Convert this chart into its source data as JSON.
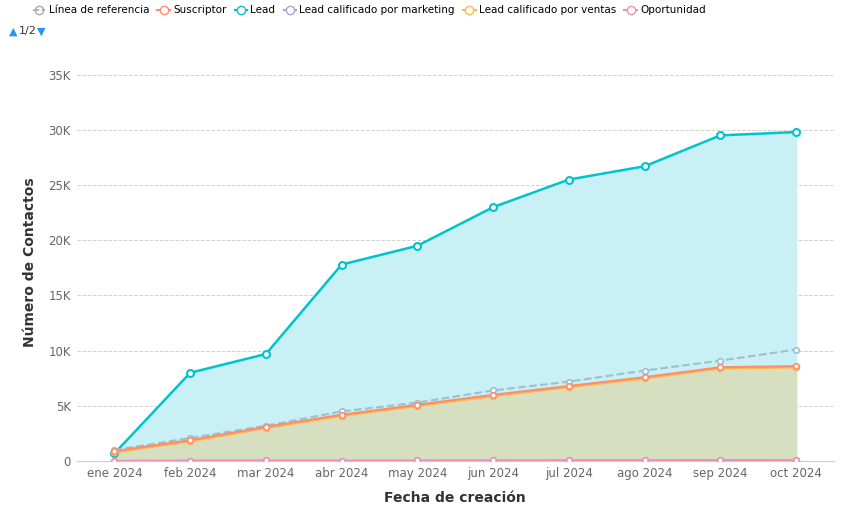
{
  "x_labels": [
    "ene 2024",
    "feb 2024",
    "mar 2024",
    "abr 2024",
    "may 2024",
    "jun 2024",
    "jul 2024",
    "ago 2024",
    "sep 2024",
    "oct 2024"
  ],
  "lead": [
    700,
    8000,
    9700,
    17800,
    19500,
    23000,
    25500,
    26700,
    29500,
    29800
  ],
  "suscriptor": [
    900,
    1900,
    3100,
    4200,
    5100,
    6000,
    6800,
    7600,
    8500,
    8600
  ],
  "lead_calificado_ventas": [
    800,
    1800,
    3000,
    4100,
    5000,
    5900,
    6700,
    7500,
    8400,
    8500
  ],
  "linea_referencia": [
    1000,
    2100,
    3200,
    4500,
    5300,
    6400,
    7200,
    8200,
    9100,
    10100
  ],
  "lead_calificado_marketing": [
    30,
    50,
    60,
    50,
    60,
    70,
    80,
    80,
    90,
    80
  ],
  "oportunidad": [
    30,
    50,
    60,
    50,
    60,
    70,
    80,
    80,
    90,
    80
  ],
  "lead_color": "#00C4CC",
  "lead_fill_color": "#C8F0F5",
  "suscriptor_color": "#FF8C69",
  "lead_calificado_ventas_color": "#FFB84D",
  "lead_calificado_ventas_fill_color": "#D6DFC0",
  "linea_referencia_color": "#9DBFCF",
  "linea_referencia_style": "--",
  "lead_calificado_marketing_color": "#B39DDB",
  "oportunidad_color": "#F48FB1",
  "background_color": "#ffffff",
  "grid_color": "#cccccc",
  "axis_label_fontsize": 10,
  "tick_fontsize": 8.5,
  "xlabel": "Fecha de creación",
  "ylabel": "Número de Contactos",
  "ylim": [
    0,
    36000
  ],
  "yticks": [
    0,
    5000,
    10000,
    15000,
    20000,
    25000,
    30000,
    35000
  ],
  "ytick_labels": [
    "0",
    "5K",
    "10K",
    "15K",
    "20K",
    "25K",
    "30K",
    "35K"
  ]
}
